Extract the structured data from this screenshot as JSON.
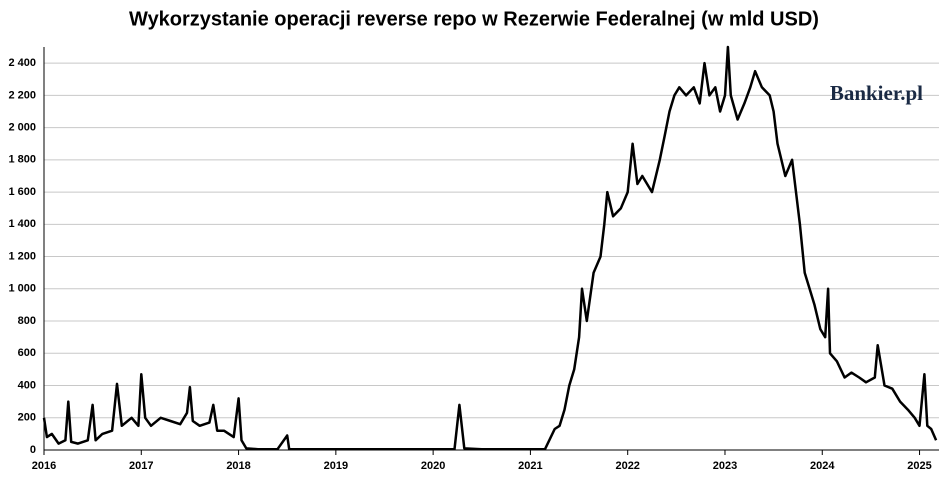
{
  "chart_data": {
    "type": "line",
    "title": "Wykorzystanie operacji reverse repo w Rezerwie Federalnej (w mld USD)",
    "watermark": "Bankier.pl",
    "xlim": [
      2016,
      2025.2
    ],
    "xticks": [
      2016,
      2017,
      2018,
      2019,
      2020,
      2021,
      2022,
      2023,
      2024,
      2025
    ],
    "ylim": [
      0,
      2500
    ],
    "yticks": [
      0,
      200,
      400,
      600,
      800,
      {
        "value": 1000,
        "label": "1 000"
      },
      {
        "value": 1200,
        "label": "1 200"
      },
      {
        "value": 1400,
        "label": "1 400"
      },
      {
        "value": 1600,
        "label": "1 600"
      },
      {
        "value": 1800,
        "label": "1 800"
      },
      {
        "value": 2000,
        "label": "2 000"
      },
      {
        "value": 2200,
        "label": "2 200"
      },
      {
        "value": 2400,
        "label": "2 400"
      }
    ],
    "grid": true,
    "series": [
      {
        "color": "#000000",
        "x": [
          2016.0,
          2016.03,
          2016.08,
          2016.15,
          2016.22,
          2016.25,
          2016.28,
          2016.35,
          2016.45,
          2016.5,
          2016.53,
          2016.6,
          2016.7,
          2016.75,
          2016.8,
          2016.9,
          2016.97,
          2017.0,
          2017.04,
          2017.1,
          2017.2,
          2017.3,
          2017.4,
          2017.47,
          2017.5,
          2017.53,
          2017.6,
          2017.7,
          2017.74,
          2017.78,
          2017.85,
          2017.95,
          2018.0,
          2018.03,
          2018.08,
          2018.2,
          2018.4,
          2018.5,
          2018.52,
          2018.7,
          2018.9,
          2019.2,
          2019.5,
          2019.8,
          2020.0,
          2020.22,
          2020.27,
          2020.32,
          2020.5,
          2020.8,
          2021.0,
          2021.15,
          2021.25,
          2021.3,
          2021.35,
          2021.4,
          2021.45,
          2021.5,
          2021.53,
          2021.58,
          2021.65,
          2021.72,
          2021.76,
          2021.79,
          2021.85,
          2021.93,
          2022.0,
          2022.05,
          2022.1,
          2022.15,
          2022.25,
          2022.33,
          2022.38,
          2022.43,
          2022.48,
          2022.53,
          2022.6,
          2022.68,
          2022.74,
          2022.79,
          2022.84,
          2022.9,
          2022.95,
          2023.0,
          2023.03,
          2023.06,
          2023.13,
          2023.2,
          2023.26,
          2023.31,
          2023.38,
          2023.46,
          2023.5,
          2023.54,
          2023.58,
          2023.62,
          2023.69,
          2023.73,
          2023.77,
          2023.82,
          2023.87,
          2023.92,
          2023.98,
          2024.03,
          2024.06,
          2024.08,
          2024.15,
          2024.23,
          2024.3,
          2024.38,
          2024.45,
          2024.54,
          2024.57,
          2024.64,
          2024.72,
          2024.8,
          2024.88,
          2024.95,
          2025.0,
          2025.05,
          2025.08,
          2025.12,
          2025.17
        ],
        "values": [
          200,
          80,
          100,
          40,
          60,
          300,
          50,
          40,
          60,
          280,
          60,
          100,
          120,
          410,
          150,
          200,
          150,
          470,
          200,
          150,
          200,
          180,
          160,
          230,
          390,
          180,
          150,
          170,
          280,
          120,
          120,
          80,
          320,
          60,
          10,
          5,
          5,
          90,
          5,
          5,
          5,
          5,
          5,
          5,
          5,
          5,
          280,
          10,
          5,
          5,
          5,
          5,
          130,
          150,
          250,
          400,
          500,
          700,
          1000,
          800,
          1100,
          1200,
          1400,
          1600,
          1450,
          1500,
          1600,
          1900,
          1650,
          1700,
          1600,
          1800,
          1950,
          2100,
          2200,
          2250,
          2200,
          2250,
          2150,
          2400,
          2200,
          2250,
          2100,
          2200,
          2500,
          2200,
          2050,
          2150,
          2250,
          2350,
          2250,
          2200,
          2100,
          1900,
          1800,
          1700,
          1800,
          1600,
          1400,
          1100,
          1000,
          900,
          750,
          700,
          1000,
          600,
          550,
          450,
          480,
          450,
          420,
          450,
          650,
          400,
          380,
          300,
          250,
          200,
          150,
          470,
          150,
          130,
          60
        ]
      }
    ]
  }
}
